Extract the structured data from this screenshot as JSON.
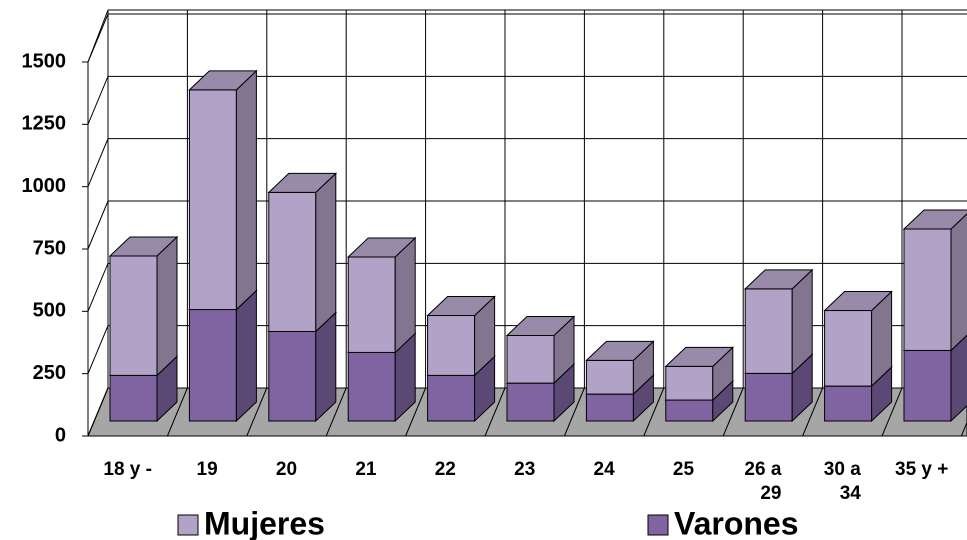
{
  "chart_data": {
    "type": "bar3d_stacked",
    "categories": [
      "18 y -",
      "19",
      "20",
      "21",
      "22",
      "23",
      "24",
      "25",
      "26 a 29",
      "30 a 34",
      "35 y +"
    ],
    "series": [
      {
        "name": "Mujeres",
        "color": "#b3a2c7",
        "values": [
          479,
          881,
          558,
          383,
          240,
          191,
          135,
          135,
          339,
          303,
          487
        ]
      },
      {
        "name": "Varones",
        "color": "#8064a2",
        "values": [
          183,
          447,
          359,
          275,
          183,
          152,
          108,
          84,
          191,
          140,
          283
        ]
      }
    ],
    "stack_order": [
      1,
      0
    ],
    "ylim": [
      0,
      1500
    ],
    "yticks": [
      0,
      250,
      500,
      750,
      1000,
      1250,
      1500
    ],
    "grid": true
  }
}
